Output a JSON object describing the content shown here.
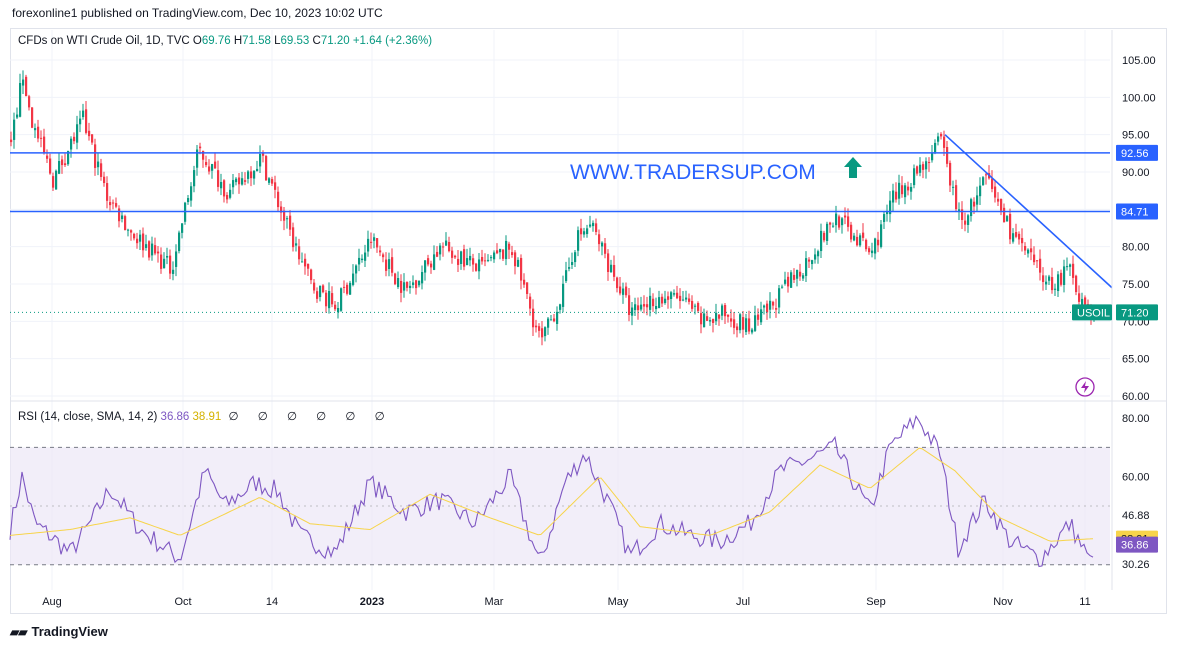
{
  "header": {
    "publisher": "forexonline1 published on TradingView.com, Dec 10, 2023 10:02 UTC"
  },
  "legend": {
    "symbol": "CFDs on WTI Crude Oil, 1D, TVC",
    "o_label": "O",
    "o_value": "69.76",
    "h_label": "H",
    "h_value": "71.58",
    "l_label": "L",
    "l_value": "69.53",
    "c_label": "C",
    "c_value": "71.20",
    "change": "+1.64 (+2.36%)"
  },
  "rsi_legend": {
    "label": "RSI (14, close, SMA, 14, 2)",
    "rsi_value": "36.86",
    "sma_value": "38.91",
    "na_values": "∅ ∅ ∅ ∅ ∅ ∅"
  },
  "watermark": "WWW.TRADERSUP.COM",
  "footer": {
    "brand": "TradingView",
    "logo_icon": "tradingview-logo-icon"
  },
  "colors": {
    "up": "#089981",
    "down": "#f23645",
    "level_line": "#2962ff",
    "rsi_line": "#7e57c2",
    "rsi_sma": "#f7d44a",
    "rsi_band": "#ede7f6",
    "label_bg": "#2962ff",
    "price_label_bg": "#089981",
    "arrow": "#089981",
    "watermark": "#2962ff"
  },
  "chart_data": [
    {
      "type": "candlestick",
      "title": "CFDs on WTI Crude Oil, 1D, TVC",
      "x_ticks": [
        "Aug",
        "Oct",
        "14",
        "2023",
        "Mar",
        "May",
        "Jul",
        "Sep",
        "Nov",
        "11"
      ],
      "y_ticks": [
        "105.00",
        "100.00",
        "95.00",
        "90.00",
        "85.00",
        "80.00",
        "75.00",
        "70.00",
        "65.00",
        "60.00"
      ],
      "ylim": [
        60,
        105
      ],
      "anchors": [
        {
          "t": 0,
          "p": 94
        },
        {
          "t": 12,
          "p": 103
        },
        {
          "t": 20,
          "p": 97
        },
        {
          "t": 42,
          "p": 89
        },
        {
          "t": 72,
          "p": 97
        },
        {
          "t": 95,
          "p": 87
        },
        {
          "t": 120,
          "p": 82
        },
        {
          "t": 160,
          "p": 77
        },
        {
          "t": 188,
          "p": 93
        },
        {
          "t": 218,
          "p": 87
        },
        {
          "t": 250,
          "p": 92
        },
        {
          "t": 275,
          "p": 83
        },
        {
          "t": 300,
          "p": 75
        },
        {
          "t": 325,
          "p": 72
        },
        {
          "t": 360,
          "p": 81
        },
        {
          "t": 395,
          "p": 74
        },
        {
          "t": 430,
          "p": 80
        },
        {
          "t": 470,
          "p": 77
        },
        {
          "t": 500,
          "p": 80
        },
        {
          "t": 530,
          "p": 67
        },
        {
          "t": 552,
          "p": 74
        },
        {
          "t": 565,
          "p": 81
        },
        {
          "t": 580,
          "p": 83
        },
        {
          "t": 600,
          "p": 77
        },
        {
          "t": 620,
          "p": 71
        },
        {
          "t": 640,
          "p": 73
        },
        {
          "t": 670,
          "p": 73
        },
        {
          "t": 690,
          "p": 70
        },
        {
          "t": 715,
          "p": 71
        },
        {
          "t": 740,
          "p": 69
        },
        {
          "t": 760,
          "p": 72
        },
        {
          "t": 790,
          "p": 77
        },
        {
          "t": 825,
          "p": 84
        },
        {
          "t": 860,
          "p": 79
        },
        {
          "t": 880,
          "p": 86
        },
        {
          "t": 905,
          "p": 90
        },
        {
          "t": 930,
          "p": 94
        },
        {
          "t": 950,
          "p": 83
        },
        {
          "t": 975,
          "p": 89
        },
        {
          "t": 1000,
          "p": 82
        },
        {
          "t": 1020,
          "p": 78
        },
        {
          "t": 1040,
          "p": 75
        },
        {
          "t": 1060,
          "p": 77
        },
        {
          "t": 1078,
          "p": 70
        },
        {
          "t": 1084,
          "p": 71.2
        }
      ],
      "horizontal_levels": [
        92.56,
        84.71
      ],
      "level_labels": [
        "92.56",
        "84.71"
      ],
      "current_price_label": "71.20",
      "symbol_tag": "USOIL",
      "trendline": [
        {
          "t": 935,
          "p": 95
        },
        {
          "t": 1102,
          "p": 74.5
        }
      ]
    },
    {
      "type": "line",
      "title": "RSI (14, close, SMA, 14, 2)",
      "ylim": [
        25,
        85
      ],
      "y_ticks": [
        "80.00",
        "60.00",
        "46.88",
        "30.26"
      ],
      "bands": [
        70,
        30
      ],
      "level_labels": [
        "38.91",
        "36.86"
      ],
      "series": [
        {
          "name": "RSI",
          "anchors": [
            {
              "t": 0,
              "p": 42
            },
            {
              "t": 12,
              "p": 60
            },
            {
              "t": 25,
              "p": 44
            },
            {
              "t": 40,
              "p": 40
            },
            {
              "t": 60,
              "p": 34
            },
            {
              "t": 80,
              "p": 44
            },
            {
              "t": 100,
              "p": 56
            },
            {
              "t": 130,
              "p": 42
            },
            {
              "t": 170,
              "p": 32
            },
            {
              "t": 195,
              "p": 62
            },
            {
              "t": 215,
              "p": 50
            },
            {
              "t": 245,
              "p": 58
            },
            {
              "t": 268,
              "p": 55
            },
            {
              "t": 290,
              "p": 40
            },
            {
              "t": 325,
              "p": 34
            },
            {
              "t": 360,
              "p": 58
            },
            {
              "t": 395,
              "p": 48
            },
            {
              "t": 430,
              "p": 52
            },
            {
              "t": 465,
              "p": 44
            },
            {
              "t": 500,
              "p": 60
            },
            {
              "t": 530,
              "p": 30
            },
            {
              "t": 555,
              "p": 58
            },
            {
              "t": 575,
              "p": 68
            },
            {
              "t": 600,
              "p": 50
            },
            {
              "t": 620,
              "p": 33
            },
            {
              "t": 650,
              "p": 44
            },
            {
              "t": 680,
              "p": 40
            },
            {
              "t": 710,
              "p": 38
            },
            {
              "t": 740,
              "p": 44
            },
            {
              "t": 770,
              "p": 62
            },
            {
              "t": 800,
              "p": 66
            },
            {
              "t": 825,
              "p": 70
            },
            {
              "t": 860,
              "p": 48
            },
            {
              "t": 880,
              "p": 70
            },
            {
              "t": 908,
              "p": 80
            },
            {
              "t": 930,
              "p": 68
            },
            {
              "t": 948,
              "p": 36
            },
            {
              "t": 975,
              "p": 52
            },
            {
              "t": 1000,
              "p": 38
            },
            {
              "t": 1030,
              "p": 32
            },
            {
              "t": 1060,
              "p": 44
            },
            {
              "t": 1080,
              "p": 31
            },
            {
              "t": 1084,
              "p": 36.86
            }
          ]
        },
        {
          "name": "RSI-based MA",
          "anchors": [
            {
              "t": 0,
              "p": 40
            },
            {
              "t": 60,
              "p": 42
            },
            {
              "t": 120,
              "p": 46
            },
            {
              "t": 170,
              "p": 40
            },
            {
              "t": 250,
              "p": 53
            },
            {
              "t": 300,
              "p": 44
            },
            {
              "t": 360,
              "p": 42
            },
            {
              "t": 420,
              "p": 54
            },
            {
              "t": 480,
              "p": 46
            },
            {
              "t": 530,
              "p": 40
            },
            {
              "t": 590,
              "p": 60
            },
            {
              "t": 630,
              "p": 43
            },
            {
              "t": 700,
              "p": 40
            },
            {
              "t": 760,
              "p": 48
            },
            {
              "t": 810,
              "p": 64
            },
            {
              "t": 860,
              "p": 56
            },
            {
              "t": 910,
              "p": 70
            },
            {
              "t": 945,
              "p": 62
            },
            {
              "t": 990,
              "p": 46
            },
            {
              "t": 1040,
              "p": 38
            },
            {
              "t": 1084,
              "p": 38.91
            }
          ]
        }
      ]
    }
  ]
}
